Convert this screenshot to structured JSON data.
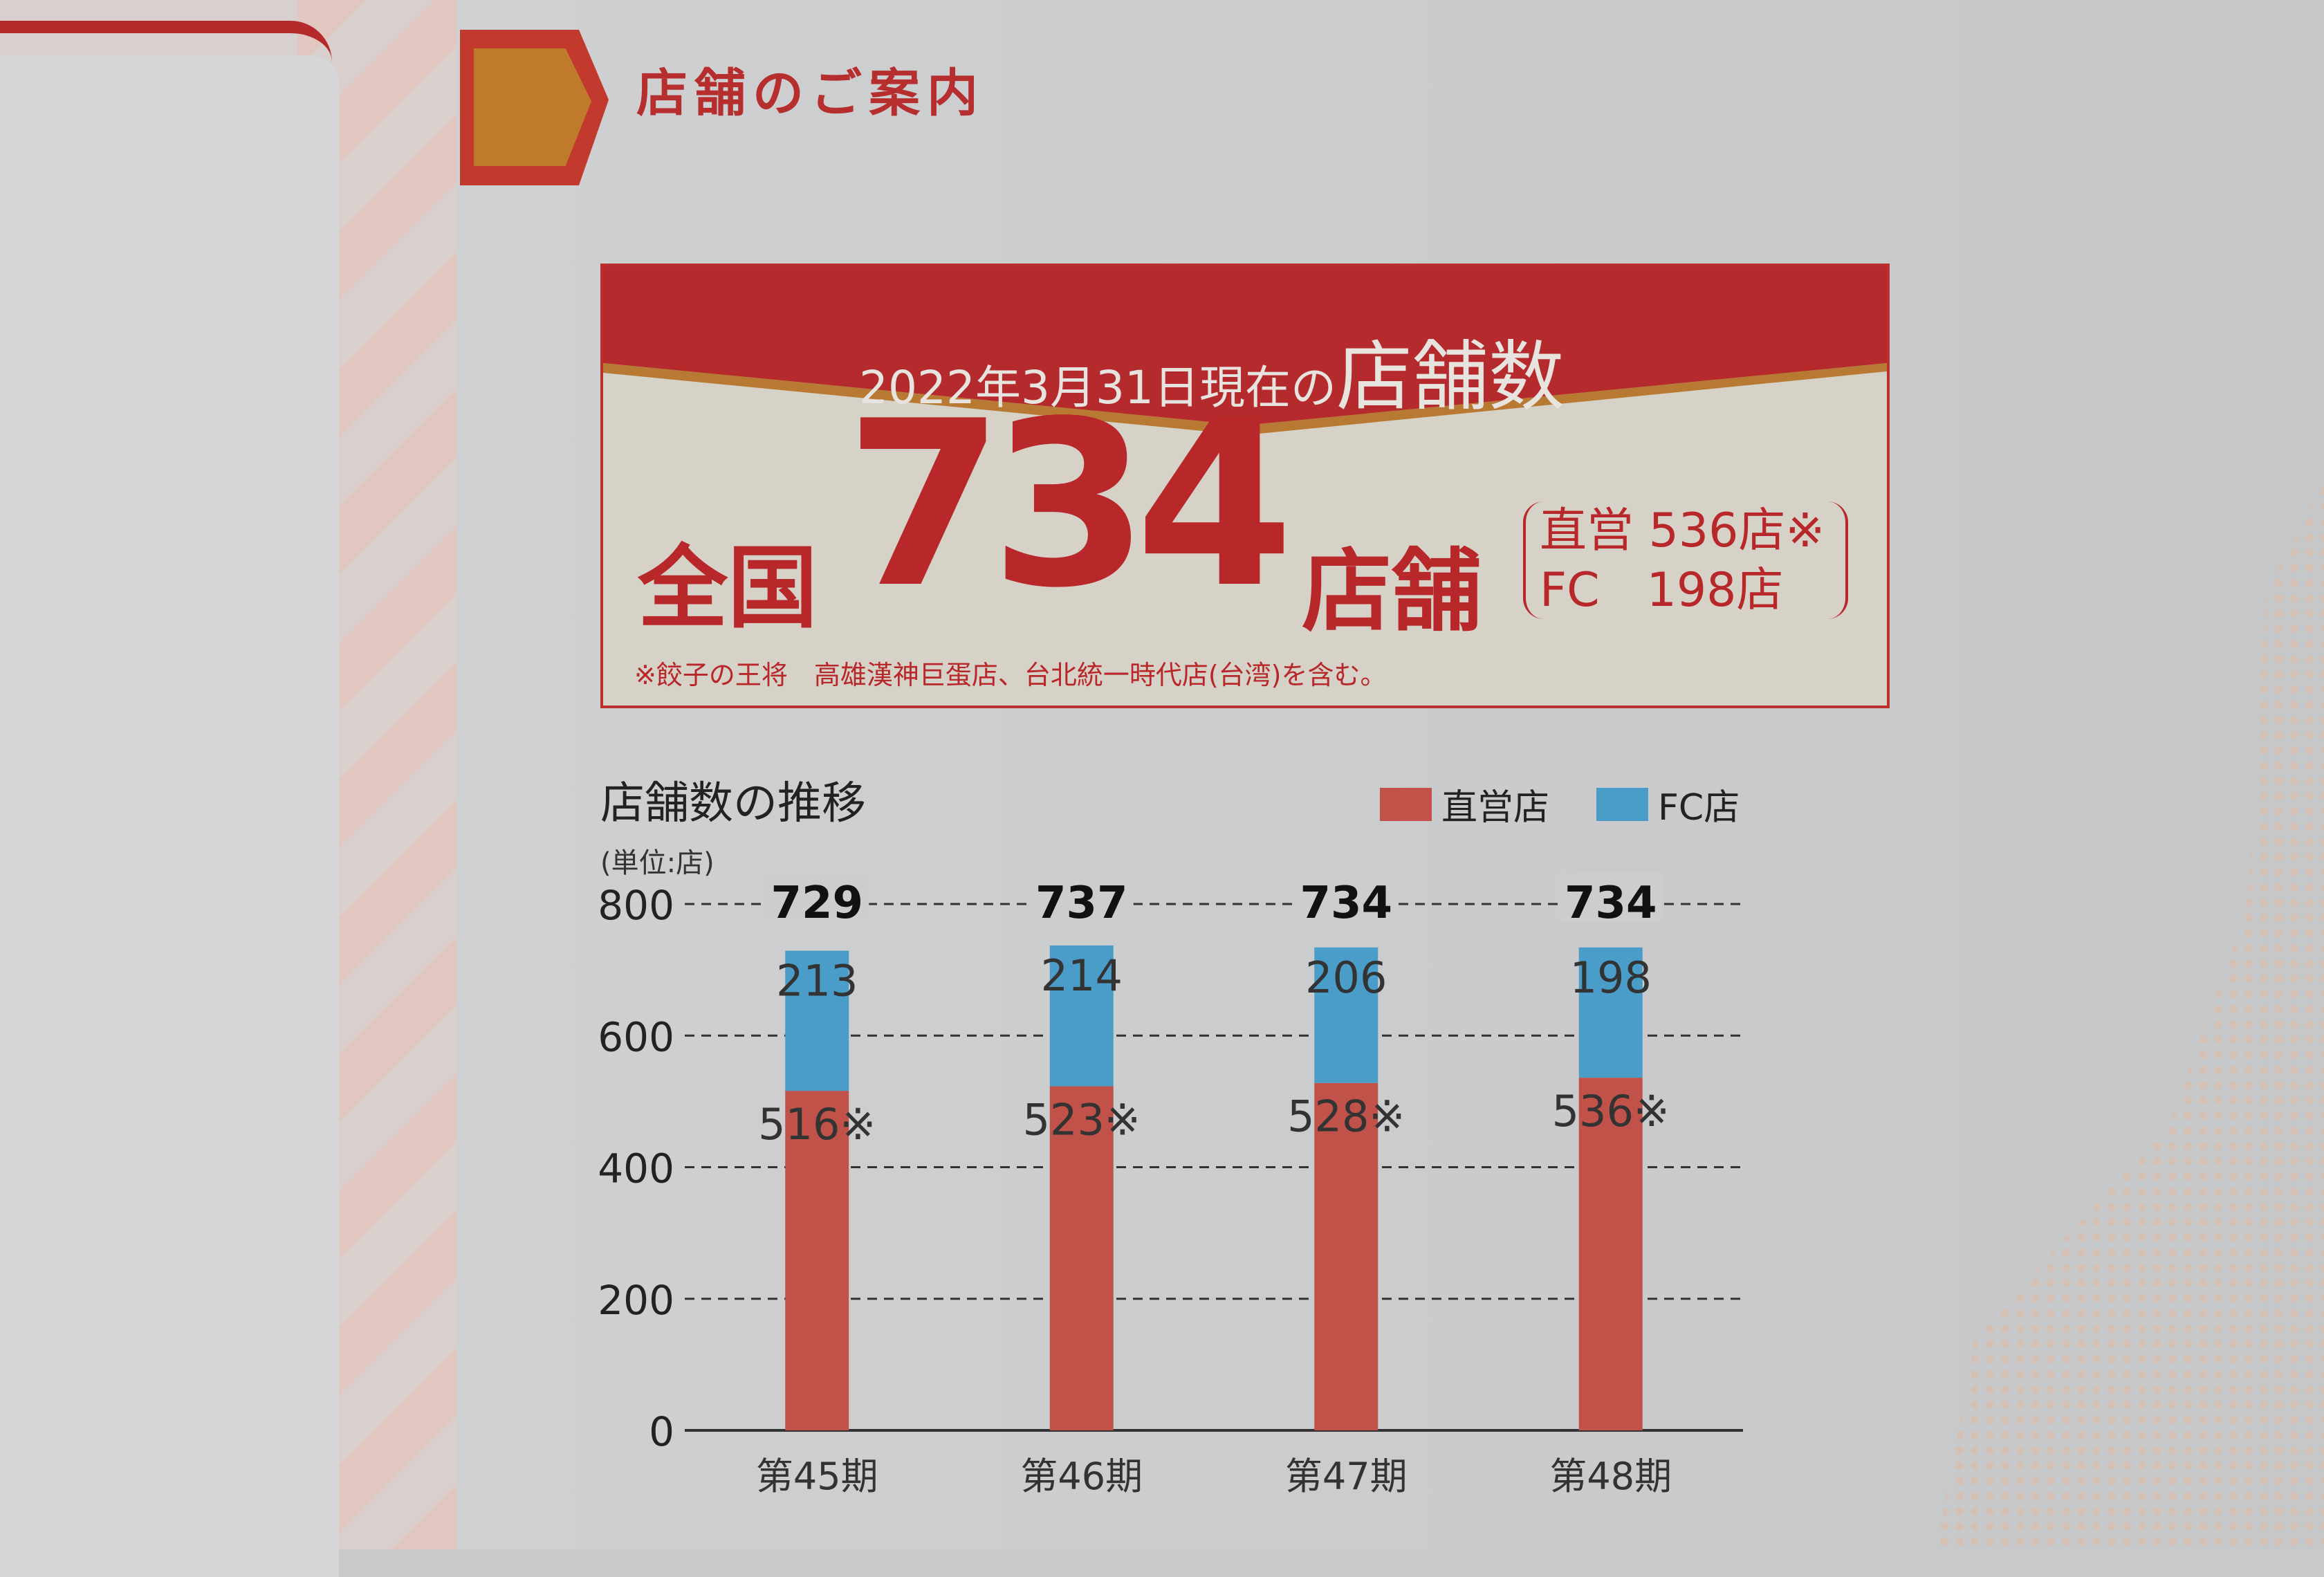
{
  "section_title": "店舗のご案内",
  "summary": {
    "date_text": "2022年3月31日現在の",
    "heading": "店舗数",
    "prefix": "全国",
    "total": "734",
    "suffix": "店舗",
    "direct_line": "直営 536店※",
    "fc_line": "FC　198店",
    "note": "※餃子の王将　高雄漢神巨蛋店、台北統一時代店(台湾)を含む。"
  },
  "colors": {
    "brand_red": "#b8272a",
    "direct": "#c0524a",
    "fc": "#4a9cc9"
  },
  "chart_data": {
    "type": "bar",
    "stacked": true,
    "title": "店舗数の推移",
    "unit_label": "(単位:店)",
    "categories": [
      "第45期",
      "第46期",
      "第47期",
      "第48期"
    ],
    "series": [
      {
        "name": "直営店",
        "values": [
          516,
          523,
          528,
          536
        ],
        "labels": [
          "516※",
          "523※",
          "528※",
          "536※"
        ]
      },
      {
        "name": "FC店",
        "values": [
          213,
          214,
          206,
          198
        ],
        "labels": [
          "213",
          "214",
          "206",
          "198"
        ]
      }
    ],
    "totals": [
      729,
      737,
      734,
      734
    ],
    "ylim": [
      0,
      800
    ],
    "yticks": [
      0,
      200,
      400,
      600,
      800
    ],
    "grid": "dashed",
    "legend": "top-right"
  }
}
